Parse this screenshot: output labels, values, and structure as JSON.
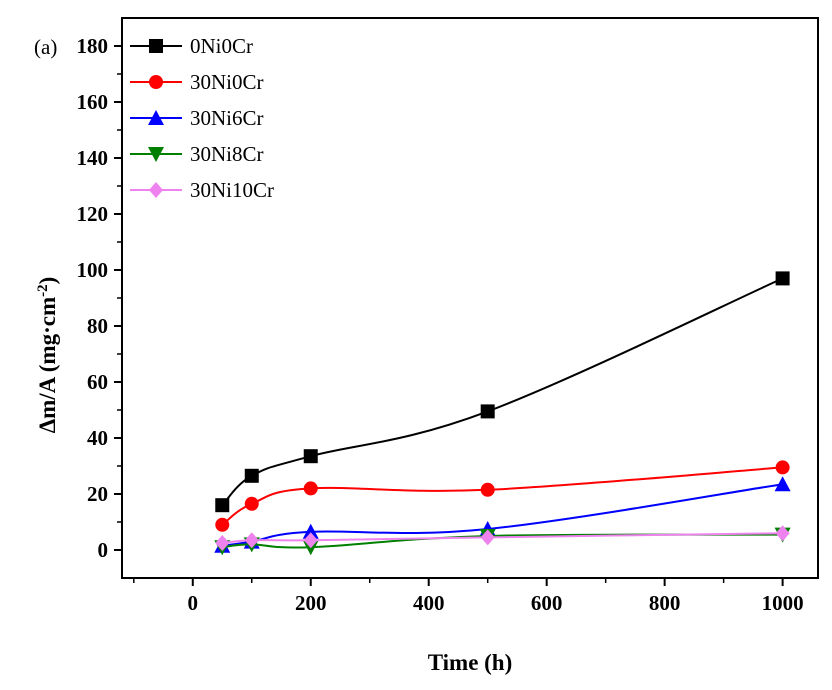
{
  "chart_data": {
    "type": "line",
    "panel_label": "(a)",
    "xlabel": "Time (h)",
    "ylabel": "Δm/A (mg·cm",
    "ylabel_sup": "-2",
    "ylabel_close": ")",
    "xlim": [
      -120,
      1060
    ],
    "ylim": [
      -10,
      190
    ],
    "xticks": [
      0,
      200,
      400,
      600,
      800,
      1000
    ],
    "yticks": [
      0,
      20,
      40,
      60,
      80,
      100,
      120,
      140,
      160,
      180
    ],
    "grid": false,
    "legend_position": "top-left",
    "series": [
      {
        "name": "0Ni0Cr",
        "color": "#000000",
        "marker": "square",
        "x": [
          50,
          100,
          200,
          500,
          1000
        ],
        "y": [
          16,
          26.5,
          33.5,
          49.5,
          97
        ]
      },
      {
        "name": "30Ni0Cr",
        "color": "#ff0000",
        "marker": "circle",
        "x": [
          50,
          100,
          200,
          500,
          1000
        ],
        "y": [
          9,
          16.5,
          22,
          21.5,
          29.5
        ]
      },
      {
        "name": "30Ni6Cr",
        "color": "#0000ff",
        "marker": "triangle-up",
        "x": [
          50,
          100,
          200,
          500,
          1000
        ],
        "y": [
          1.5,
          3,
          6.5,
          7.5,
          23.5
        ]
      },
      {
        "name": "30Ni8Cr",
        "color": "#008000",
        "marker": "triangle-down",
        "x": [
          50,
          100,
          200,
          500,
          1000
        ],
        "y": [
          1,
          2,
          1,
          5,
          5.5
        ]
      },
      {
        "name": "30Ni10Cr",
        "color": "#ee82ee",
        "marker": "diamond",
        "x": [
          50,
          100,
          200,
          500,
          1000
        ],
        "y": [
          2.5,
          3.5,
          3.5,
          4.5,
          6
        ]
      }
    ]
  }
}
